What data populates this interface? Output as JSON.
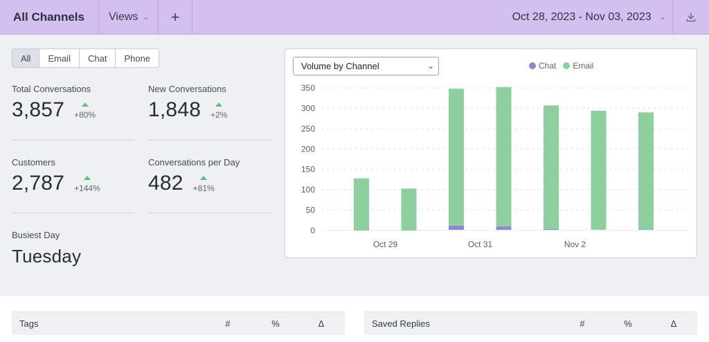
{
  "header": {
    "title": "All Channels",
    "views_label": "Views",
    "add_label": "+",
    "date_range": "Oct 28, 2023 - Nov 03, 2023"
  },
  "filters": [
    "All",
    "Email",
    "Chat",
    "Phone"
  ],
  "active_filter": "All",
  "stats": {
    "total_conversations": {
      "label": "Total Conversations",
      "value": "3,857",
      "change": "+80%"
    },
    "new_conversations": {
      "label": "New Conversations",
      "value": "1,848",
      "change": "+2%"
    },
    "customers": {
      "label": "Customers",
      "value": "2,787",
      "change": "+144%"
    },
    "conversations_per_day": {
      "label": "Conversations per Day",
      "value": "482",
      "change": "+81%"
    },
    "busiest_day": {
      "label": "Busiest Day",
      "value": "Tuesday"
    }
  },
  "chart_card": {
    "select_value": "Volume by Channel"
  },
  "chart_data": {
    "type": "bar",
    "stacked": true,
    "categories": [
      "Oct 28",
      "Oct 29",
      "Oct 30",
      "Oct 31",
      "Nov 1",
      "Nov 2",
      "Nov 3"
    ],
    "x_tick_labels": [
      "Oct 29",
      "Oct 31",
      "Nov 2"
    ],
    "series": [
      {
        "name": "Chat",
        "color": "#8f86d0",
        "values": [
          0,
          0,
          12,
          10,
          4,
          2,
          3
        ]
      },
      {
        "name": "Email",
        "color": "#8ecf9f",
        "values": [
          128,
          103,
          336,
          342,
          303,
          292,
          287
        ]
      }
    ],
    "ylim": [
      0,
      350
    ],
    "yticks": [
      0,
      50,
      100,
      150,
      200,
      250,
      300,
      350
    ],
    "grid": true,
    "legend": "top"
  },
  "tables": {
    "tags": {
      "title": "Tags",
      "cols": [
        "#",
        "%",
        "Δ"
      ]
    },
    "saved_replies": {
      "title": "Saved Replies",
      "cols": [
        "#",
        "%",
        "Δ"
      ]
    }
  },
  "colors": {
    "header_bg": "#d3bff0",
    "accent_up": "#5cc07a",
    "chat": "#8f86d0",
    "email": "#8ecf9f"
  },
  "icons": {
    "dropdown": "chevron-down-icon",
    "add": "plus-icon",
    "download": "download-icon",
    "change": "triangle-up-icon"
  }
}
